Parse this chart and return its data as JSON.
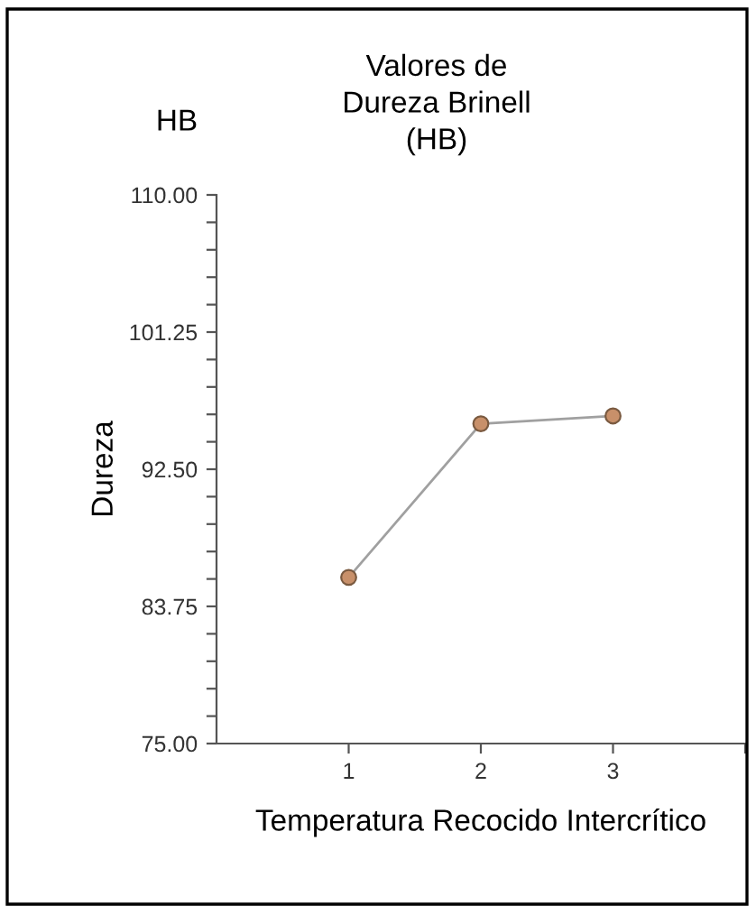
{
  "chart_data": {
    "type": "line",
    "title": "Valores de\nDureza Brinell\n(HB)",
    "xlabel": "Temperatura Recocido Intercrítico",
    "ylabel": "Dureza",
    "annotations": [
      "HB"
    ],
    "x": [
      1,
      2,
      3
    ],
    "series": [
      {
        "color": "#a0a0a0",
        "values": [
          85.6,
          95.4,
          95.9
        ]
      }
    ],
    "marker": "circle",
    "grid": false,
    "legend": false,
    "xlim": [
      0,
      4
    ],
    "xticks": [
      1,
      2,
      3,
      {
        "value": 4,
        "label": null
      }
    ],
    "ylim": [
      75,
      110
    ],
    "yticks": [
      {
        "value": 75,
        "label": "75.00"
      },
      {
        "value": 76.75,
        "label": null
      },
      {
        "value": 78.5,
        "label": null
      },
      {
        "value": 80.25,
        "label": null
      },
      {
        "value": 82,
        "label": null
      },
      {
        "value": 83.75,
        "label": "83.75"
      },
      {
        "value": 85.5,
        "label": null
      },
      {
        "value": 87.25,
        "label": null
      },
      {
        "value": 89,
        "label": null
      },
      {
        "value": 90.75,
        "label": null
      },
      {
        "value": 92.5,
        "label": "92.50"
      },
      {
        "value": 94.25,
        "label": null
      },
      {
        "value": 96,
        "label": null
      },
      {
        "value": 97.75,
        "label": null
      },
      {
        "value": 99.5,
        "label": null
      },
      {
        "value": 101.25,
        "label": "101.25"
      },
      {
        "value": 103,
        "label": null
      },
      {
        "value": 104.75,
        "label": null
      },
      {
        "value": 106.5,
        "label": null
      },
      {
        "value": 108.25,
        "label": null
      },
      {
        "value": 110,
        "label": "110.00"
      }
    ]
  }
}
